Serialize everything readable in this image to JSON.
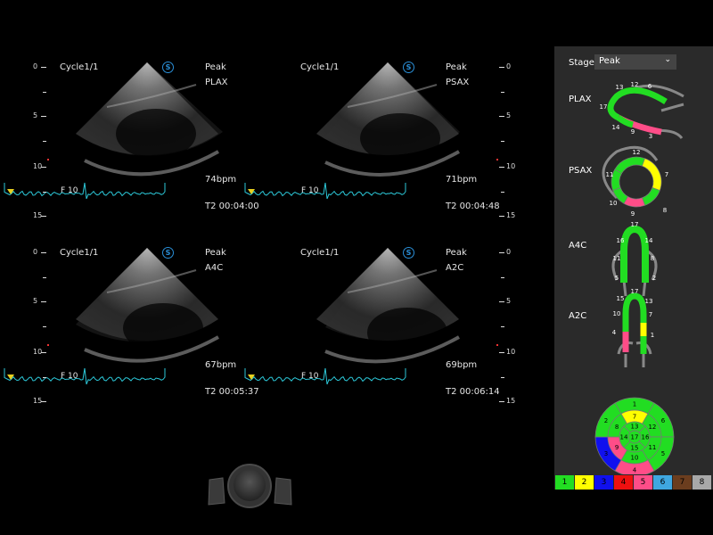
{
  "quadrants": [
    {
      "cycle": "Cycle1/1",
      "stage": "Peak",
      "view": "PLAX",
      "bpm": "74bpm",
      "time": "T2 00:04:00",
      "frame": "F 10",
      "s_icon": "S",
      "depth": [
        "0",
        "5",
        "10",
        "15"
      ]
    },
    {
      "cycle": "Cycle1/1",
      "stage": "Peak",
      "view": "PSAX",
      "bpm": "71bpm",
      "time": "T2 00:04:48",
      "frame": "F 10",
      "s_icon": "S",
      "depth": [
        "0",
        "5",
        "10",
        "15"
      ]
    },
    {
      "cycle": "Cycle1/1",
      "stage": "Peak",
      "view": "A4C",
      "bpm": "67bpm",
      "time": "T2 00:05:37",
      "frame": "F 10",
      "s_icon": "S",
      "depth": [
        "0",
        "5",
        "10",
        "15"
      ]
    },
    {
      "cycle": "Cycle1/1",
      "stage": "Peak",
      "view": "A2C",
      "bpm": "69bpm",
      "time": "T2 00:06:14",
      "frame": "F 10",
      "s_icon": "S",
      "depth": [
        "0",
        "5",
        "10",
        "15"
      ]
    }
  ],
  "panel": {
    "stage_label": "Stage",
    "stage_value": "Peak",
    "views": [
      "PLAX",
      "PSAX",
      "A4C",
      "A2C"
    ],
    "plax_labels": [
      "13",
      "12",
      "6",
      "17",
      "14",
      "9",
      "3"
    ],
    "psax_labels": [
      "12",
      "11",
      "7",
      "10",
      "9",
      "8"
    ],
    "a4c_labels": [
      "17",
      "16",
      "14",
      "11",
      "8",
      "5",
      "2"
    ],
    "a2c_labels": [
      "17",
      "15",
      "13",
      "10",
      "7",
      "4",
      "1"
    ]
  },
  "scores": {
    "1": 1,
    "2": 1,
    "3": 3,
    "4": 5,
    "5": 1,
    "6": 1,
    "7": 2,
    "8": 1,
    "9": 5,
    "10": 1,
    "11": 1,
    "12": 1,
    "13": 1,
    "14": 1,
    "15": 1,
    "16": 1,
    "17": 1
  },
  "legend": [
    {
      "label": "1",
      "color": "#22dd22"
    },
    {
      "label": "2",
      "color": "#ffff00"
    },
    {
      "label": "3",
      "color": "#1010ee"
    },
    {
      "label": "4",
      "color": "#ee1010"
    },
    {
      "label": "5",
      "color": "#ff4d88"
    },
    {
      "label": "6",
      "color": "#3fa7e0"
    },
    {
      "label": "7",
      "color": "#6b3d1e"
    },
    {
      "label": "8",
      "color": "#a8a8a8"
    }
  ]
}
